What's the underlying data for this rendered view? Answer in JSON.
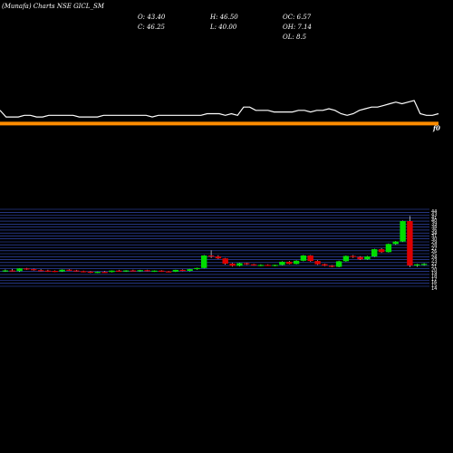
{
  "header": {
    "watermark": "(Munafa) Charts NSE GICL_SM",
    "open_label": "O: 43.40",
    "high_label": "H: 46.50",
    "oc_label": "OC: 6.57",
    "close_label": "C: 46.25",
    "low_label": "L: 40.00",
    "oh_label": "OH: 7.14",
    "ol_label": "OL: 8.5"
  },
  "colors": {
    "background": "#000000",
    "up": "#00dd00",
    "down": "#dd0000",
    "line": "#ffffff",
    "ema": "#ff8c00",
    "grid": "#3a55cc"
  },
  "chart_data": [
    {
      "type": "line",
      "title": "",
      "xlabel": "",
      "ylabel": "",
      "series": [
        {
          "values": [
            18,
            14,
            14,
            14,
            15,
            15,
            14,
            14,
            15,
            15,
            15,
            15,
            15,
            14,
            14,
            14,
            14,
            15,
            15,
            15,
            15,
            15,
            15,
            15,
            15,
            14,
            15,
            15,
            15,
            15,
            15,
            15,
            15,
            15,
            16,
            16,
            16,
            15,
            16,
            15,
            20,
            20,
            18,
            18,
            18,
            17,
            17,
            17,
            17,
            18,
            18,
            17,
            18,
            18,
            19,
            18,
            16,
            15,
            16,
            18,
            19,
            20,
            20,
            21,
            22,
            23,
            22,
            23,
            24,
            16,
            15,
            15,
            16
          ]
        },
        {
          "values": [
            10,
            10,
            10,
            10,
            10,
            10,
            10,
            10,
            10,
            10,
            10,
            10,
            10,
            10,
            10,
            10,
            10,
            10,
            10,
            10,
            10,
            10,
            10,
            10,
            10,
            10,
            10,
            10,
            10,
            10,
            10,
            10,
            10,
            10,
            10,
            10,
            10,
            10,
            10,
            10,
            10,
            10,
            10,
            10,
            10,
            10,
            10,
            10,
            10,
            10,
            10,
            10,
            10,
            10,
            10,
            10,
            10,
            10,
            10,
            10,
            10,
            10,
            10,
            10,
            10,
            10,
            10,
            10,
            10,
            10,
            10,
            10,
            10
          ]
        }
      ],
      "annotation": "f0"
    },
    {
      "type": "candlestick",
      "title": "",
      "ohlc": [
        [
          20.5,
          21.0,
          20.0,
          20.6
        ],
        [
          20.6,
          21.2,
          20.1,
          20.3
        ],
        [
          20.3,
          21.5,
          20.0,
          21.4
        ],
        [
          21.4,
          21.6,
          20.8,
          21.1
        ],
        [
          21.1,
          21.3,
          20.5,
          20.7
        ],
        [
          20.7,
          21.1,
          20.2,
          20.5
        ],
        [
          20.5,
          20.9,
          20.0,
          20.4
        ],
        [
          20.4,
          20.6,
          19.9,
          20.2
        ],
        [
          20.2,
          21.0,
          20.0,
          20.9
        ],
        [
          20.9,
          21.1,
          20.4,
          20.6
        ],
        [
          20.6,
          20.8,
          20.1,
          20.3
        ],
        [
          20.3,
          20.5,
          19.8,
          20.1
        ],
        [
          20.1,
          20.3,
          19.5,
          19.7
        ],
        [
          19.7,
          20.1,
          19.5,
          20.0
        ],
        [
          20.0,
          20.3,
          19.7,
          19.9
        ],
        [
          19.9,
          20.6,
          19.8,
          20.5
        ],
        [
          20.5,
          20.8,
          20.1,
          20.2
        ],
        [
          20.2,
          20.7,
          20.0,
          20.6
        ],
        [
          20.6,
          20.9,
          20.2,
          20.4
        ],
        [
          20.4,
          20.8,
          20.1,
          20.7
        ],
        [
          20.7,
          20.9,
          20.2,
          20.3
        ],
        [
          20.3,
          20.6,
          20.0,
          20.5
        ],
        [
          20.5,
          20.7,
          20.0,
          20.2
        ],
        [
          20.2,
          20.4,
          19.9,
          20.1
        ],
        [
          20.1,
          20.9,
          19.9,
          20.8
        ],
        [
          20.8,
          21.0,
          20.3,
          20.4
        ],
        [
          20.4,
          21.2,
          20.2,
          21.1
        ],
        [
          21.1,
          21.7,
          20.9,
          21.6
        ],
        [
          21.6,
          27.0,
          21.4,
          26.8
        ],
        [
          26.8,
          29.0,
          25.8,
          26.4
        ],
        [
          26.4,
          26.9,
          25.3,
          25.6
        ],
        [
          25.6,
          25.8,
          23.0,
          23.4
        ],
        [
          23.4,
          23.7,
          22.2,
          22.5
        ],
        [
          22.5,
          23.8,
          22.3,
          23.6
        ],
        [
          23.6,
          23.8,
          22.9,
          23.1
        ],
        [
          23.1,
          23.3,
          22.6,
          22.8
        ],
        [
          22.8,
          23.1,
          22.4,
          22.9
        ],
        [
          22.9,
          23.1,
          22.5,
          22.7
        ],
        [
          22.7,
          23.0,
          22.3,
          22.9
        ],
        [
          22.9,
          24.4,
          22.7,
          24.2
        ],
        [
          24.2,
          24.5,
          23.1,
          23.3
        ],
        [
          23.3,
          24.8,
          23.1,
          24.6
        ],
        [
          24.6,
          27.0,
          24.4,
          26.8
        ],
        [
          26.8,
          27.0,
          24.2,
          24.5
        ],
        [
          24.5,
          24.8,
          22.9,
          23.2
        ],
        [
          23.2,
          23.4,
          22.4,
          22.6
        ],
        [
          22.6,
          22.8,
          21.9,
          22.1
        ],
        [
          22.1,
          24.6,
          21.9,
          24.4
        ],
        [
          24.4,
          26.8,
          24.2,
          26.6
        ],
        [
          26.6,
          27.0,
          25.8,
          26.2
        ],
        [
          26.2,
          26.5,
          24.9,
          25.2
        ],
        [
          25.2,
          26.6,
          25.0,
          26.4
        ],
        [
          26.4,
          29.6,
          26.2,
          29.4
        ],
        [
          29.4,
          29.8,
          27.9,
          28.2
        ],
        [
          28.2,
          31.8,
          28.0,
          31.6
        ],
        [
          31.6,
          32.8,
          31.2,
          32.6
        ],
        [
          32.6,
          41.3,
          32.4,
          41.1
        ],
        [
          41.1,
          43.2,
          22.0,
          22.6
        ],
        [
          22.6,
          23.3,
          22.1,
          23.1
        ],
        [
          23.1,
          23.6,
          22.6,
          23.3
        ]
      ],
      "ylim": [
        14,
        46
      ],
      "ticks": [
        "44",
        "43",
        "41",
        "40",
        "39",
        "38",
        "36",
        "34",
        "31",
        "30",
        "29",
        "28",
        "27",
        "26",
        "25",
        "24",
        "23",
        "22",
        "21",
        "20",
        "19",
        "18",
        "17",
        "16",
        "15",
        "14"
      ]
    }
  ]
}
